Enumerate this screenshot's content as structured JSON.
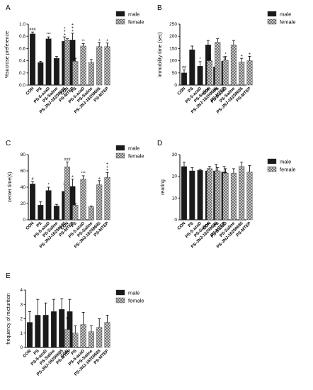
{
  "colors": {
    "male": "#1a1a1a",
    "female": "#9a9a9a",
    "axis": "#000000"
  },
  "conditions": [
    "CON",
    "PS",
    "PS-5-azaD",
    "PS-Saline",
    "PS-JNJ-16259685",
    "PS-MTEP"
  ],
  "chart_data": [
    {
      "panel": "A",
      "type": "bar",
      "ylabel": "%sucrose preference",
      "ylim": [
        0.0,
        1.0
      ],
      "yticks": [
        0.0,
        0.2,
        0.4,
        0.6,
        0.8,
        1.0
      ],
      "tick_labels": [
        "0.0",
        "0.2",
        "0.4",
        "0.6",
        "0.8",
        "1.0"
      ],
      "legend": {
        "position": "top-right",
        "entries": [
          "male",
          "female"
        ]
      },
      "series": [
        {
          "name": "male",
          "values": [
            0.84,
            0.37,
            0.76,
            0.44,
            0.72,
            0.74
          ],
          "errors": [
            0.03,
            0.02,
            0.03,
            0.03,
            0.07,
            0.11
          ],
          "significance": [
            "###",
            "",
            "***",
            "",
            "+++",
            "+++"
          ]
        },
        {
          "name": "female",
          "values": [
            0.74,
            0.39,
            0.64,
            0.37,
            0.63,
            0.63
          ],
          "errors": [
            0.02,
            0.05,
            0.04,
            0.05,
            0.07,
            0.06
          ],
          "significance": [
            "",
            "",
            "**",
            "",
            "+",
            "+"
          ]
        }
      ]
    },
    {
      "panel": "B",
      "type": "bar",
      "ylabel": "immobility time (sec)",
      "ylim": [
        0,
        250
      ],
      "yticks": [
        0,
        50,
        100,
        150,
        200,
        250
      ],
      "tick_labels": [
        "0",
        "50",
        "100",
        "150",
        "200",
        "250"
      ],
      "legend": {
        "position": "top-right",
        "entries": [
          "male",
          "female"
        ]
      },
      "series": [
        {
          "name": "male",
          "values": [
            50,
            145,
            78,
            165,
            75,
            98
          ],
          "errors": [
            12,
            15,
            18,
            18,
            15,
            18
          ],
          "significance": [
            "##",
            "",
            "*",
            "",
            "+",
            ""
          ]
        },
        {
          "name": "female",
          "values": [
            100,
            175,
            102,
            165,
            95,
            100
          ],
          "errors": [
            10,
            15,
            15,
            18,
            15,
            18
          ],
          "significance": [
            "#",
            "",
            "*",
            "",
            "+",
            "+"
          ]
        }
      ]
    },
    {
      "panel": "C",
      "type": "bar",
      "ylabel": "center time(s)",
      "ylim": [
        0,
        80
      ],
      "yticks": [
        0,
        20,
        40,
        60,
        80
      ],
      "tick_labels": [
        "0",
        "20",
        "40",
        "60",
        "80"
      ],
      "legend": {
        "position": "top-right",
        "entries": [
          "male",
          "female"
        ]
      },
      "series": [
        {
          "name": "male",
          "values": [
            44,
            18,
            36,
            17,
            35,
            41
          ],
          "errors": [
            3,
            4,
            4,
            2,
            9,
            9
          ],
          "significance": [
            "#",
            "",
            "*",
            "",
            "+",
            "+"
          ]
        },
        {
          "name": "female",
          "values": [
            65,
            18,
            50,
            16,
            43,
            52
          ],
          "errors": [
            6,
            2,
            4,
            1,
            5,
            6
          ],
          "significance": [
            "###",
            "",
            "***",
            "",
            "+",
            "+++"
          ]
        }
      ]
    },
    {
      "panel": "D",
      "type": "bar",
      "ylabel": "rearing",
      "ylim": [
        0,
        30
      ],
      "yticks": [
        0,
        10,
        20,
        30
      ],
      "tick_labels": [
        "0",
        "10",
        "20",
        "30"
      ],
      "legend": {
        "position": "top-right",
        "entries": [
          "male",
          "female"
        ]
      },
      "series": [
        {
          "name": "male",
          "values": [
            24.5,
            22.5,
            22.8,
            22.5,
            22.5,
            22.0
          ],
          "errors": [
            2.0,
            1.5,
            0.5,
            1.0,
            3.0,
            2.5
          ],
          "significance": [
            "",
            "",
            "",
            "",
            "",
            ""
          ]
        },
        {
          "name": "female",
          "values": [
            23.5,
            22.5,
            21.5,
            21.5,
            24.5,
            22.0
          ],
          "errors": [
            1.0,
            1.5,
            2.0,
            2.0,
            2.0,
            3.0
          ],
          "significance": [
            "",
            "",
            "",
            "",
            "",
            ""
          ]
        }
      ]
    },
    {
      "panel": "E",
      "type": "bar",
      "ylabel": "frequency of micturition",
      "ylim": [
        0,
        4
      ],
      "yticks": [
        0,
        1,
        2,
        3,
        4
      ],
      "tick_labels": [
        "0",
        "1",
        "2",
        "3",
        "4"
      ],
      "legend": {
        "position": "top-right",
        "entries": [
          "male",
          "female"
        ]
      },
      "series": [
        {
          "name": "male",
          "values": [
            1.75,
            2.25,
            2.25,
            2.5,
            2.65,
            2.5
          ],
          "errors": [
            0.75,
            1.1,
            0.85,
            0.85,
            0.75,
            0.85
          ],
          "significance": [
            "",
            "",
            "",
            "",
            "",
            ""
          ]
        },
        {
          "name": "female",
          "values": [
            1.25,
            1.0,
            1.6,
            1.1,
            1.4,
            1.75
          ],
          "errors": [
            0.8,
            0.5,
            0.85,
            0.4,
            0.6,
            0.5
          ],
          "significance": [
            "",
            "",
            "",
            "",
            "",
            ""
          ]
        }
      ]
    }
  ]
}
